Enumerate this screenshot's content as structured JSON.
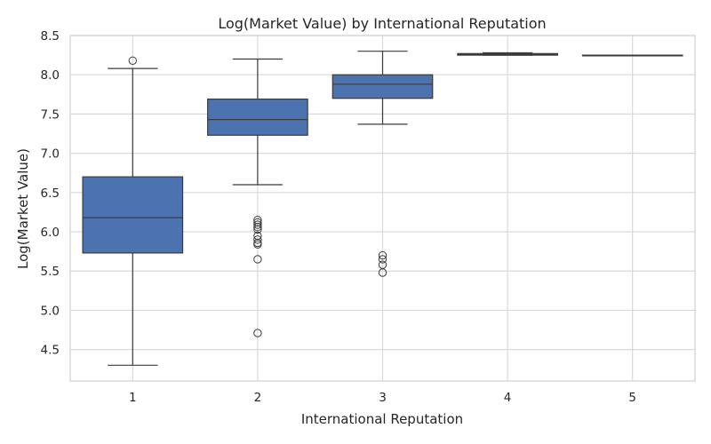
{
  "chart_data": {
    "type": "box",
    "title": "Log(Market Value) by International Reputation",
    "xlabel": "International Reputation",
    "ylabel": "Log(Market Value)",
    "categories": [
      "1",
      "2",
      "3",
      "4",
      "5"
    ],
    "ylim": [
      4.1,
      8.5
    ],
    "yticks": [
      "4.5",
      "5.0",
      "5.5",
      "6.0",
      "6.5",
      "7.0",
      "7.5",
      "8.0",
      "8.5"
    ],
    "grid": true,
    "box_color": "#4c72b0",
    "boxes": [
      {
        "category": "1",
        "whislo": 4.3,
        "q1": 5.73,
        "median": 6.18,
        "q3": 6.7,
        "whishi": 8.08,
        "fliers": [
          8.18
        ]
      },
      {
        "category": "2",
        "whislo": 6.6,
        "q1": 7.23,
        "median": 7.43,
        "q3": 7.69,
        "whishi": 8.2,
        "fliers": [
          6.15,
          6.12,
          6.09,
          6.06,
          6.03,
          5.95,
          5.9,
          5.86,
          5.84,
          5.65,
          4.71
        ]
      },
      {
        "category": "3",
        "whislo": 7.37,
        "q1": 7.7,
        "median": 7.88,
        "q3": 8.0,
        "whishi": 8.3,
        "fliers": [
          5.7,
          5.65,
          5.58,
          5.48
        ]
      },
      {
        "category": "4",
        "whislo": 8.25,
        "q1": 8.25,
        "median": 8.26,
        "q3": 8.27,
        "whishi": 8.28,
        "fliers": []
      },
      {
        "category": "5",
        "whislo": 8.25,
        "q1": 8.25,
        "median": 8.25,
        "q3": 8.25,
        "whishi": 8.25,
        "fliers": []
      }
    ]
  }
}
